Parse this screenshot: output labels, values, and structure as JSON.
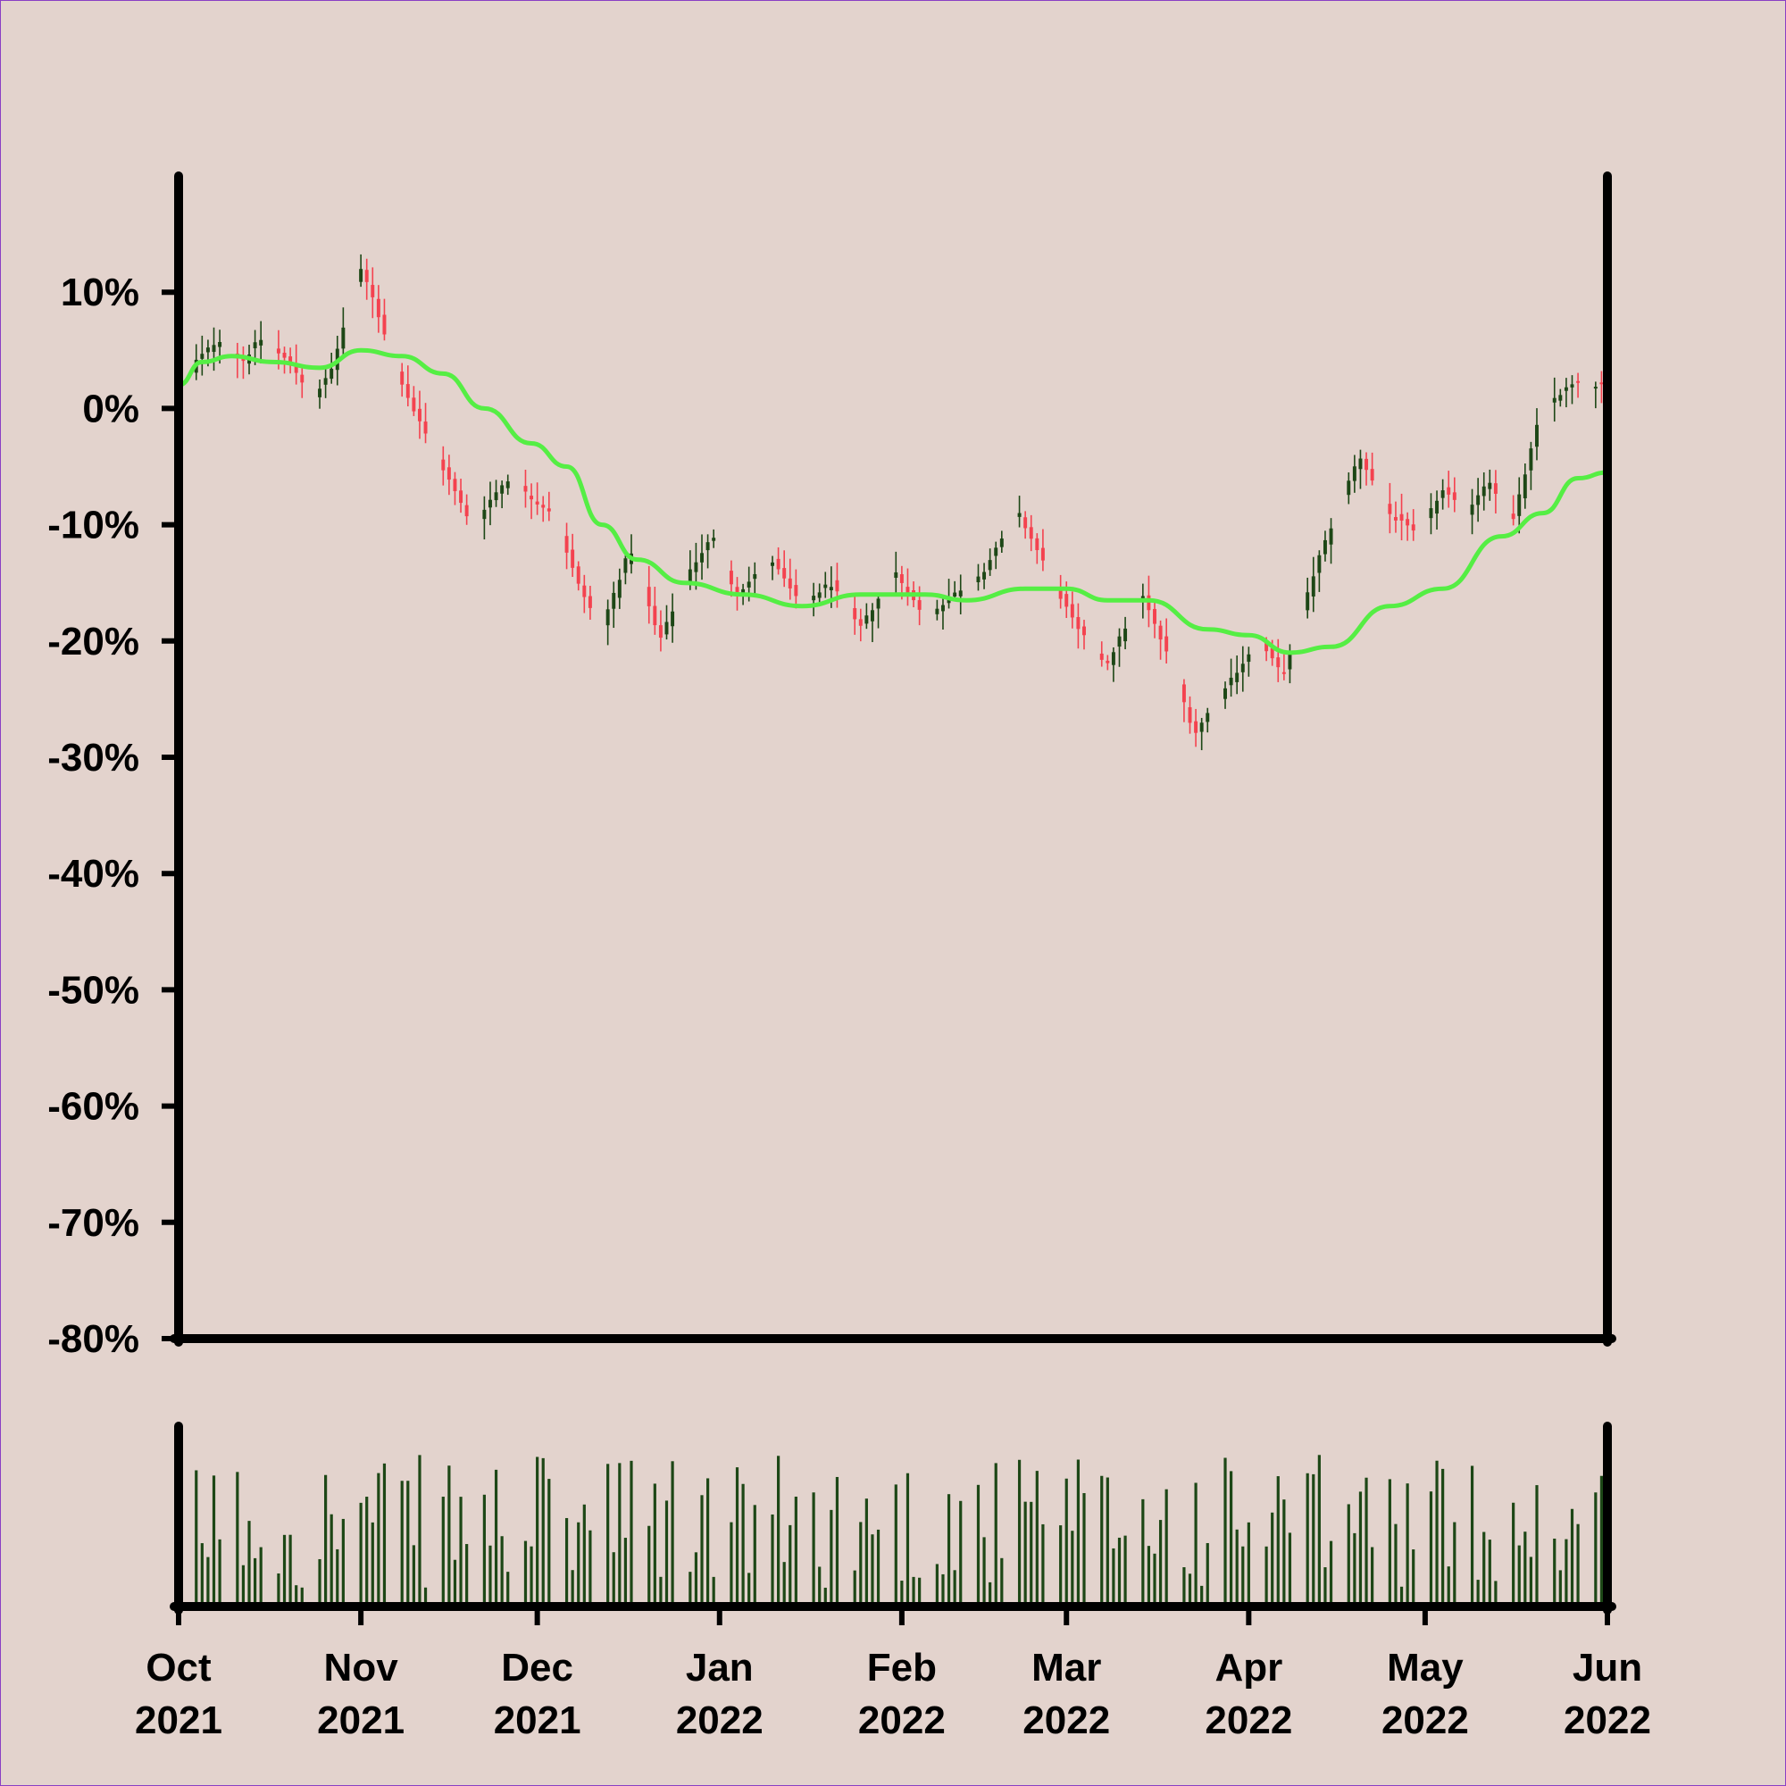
{
  "chart_data": {
    "type": "candlestick",
    "y_axis": {
      "ticks": [
        "10%",
        "0%",
        "-10%",
        "-20%",
        "-30%",
        "-40%",
        "-50%",
        "-60%",
        "-70%",
        "-80%"
      ],
      "tick_values": [
        10,
        0,
        -10,
        -20,
        -30,
        -40,
        -50,
        -60,
        -70,
        -80
      ],
      "range": [
        -80,
        20
      ]
    },
    "x_axis": {
      "range": [
        "2021-10-01",
        "2022-06-01"
      ],
      "ticks": [
        {
          "month": "Oct",
          "year": "2021",
          "date": "2021-10-01"
        },
        {
          "month": "Nov",
          "year": "2021",
          "date": "2021-11-01"
        },
        {
          "month": "Dec",
          "year": "2021",
          "date": "2021-12-01"
        },
        {
          "month": "Jan",
          "year": "2022",
          "date": "2022-01-01"
        },
        {
          "month": "Feb",
          "year": "2022",
          "date": "2022-02-01"
        },
        {
          "month": "Mar",
          "year": "2022",
          "date": "2022-03-01"
        },
        {
          "month": "Apr",
          "year": "2022",
          "date": "2022-04-01"
        },
        {
          "month": "May",
          "year": "2022",
          "date": "2022-05-01"
        },
        {
          "month": "Jun",
          "year": "2022",
          "date": "2022-06-01"
        }
      ]
    },
    "price_path": [
      [
        "2021-10-01",
        0
      ],
      [
        "2021-10-04",
        4
      ],
      [
        "2021-10-08",
        6
      ],
      [
        "2021-10-12",
        4
      ],
      [
        "2021-10-15",
        6
      ],
      [
        "2021-10-20",
        4
      ],
      [
        "2021-10-24",
        1
      ],
      [
        "2021-10-27",
        3
      ],
      [
        "2021-11-01",
        12
      ],
      [
        "2021-11-03",
        10
      ],
      [
        "2021-11-06",
        5
      ],
      [
        "2021-11-10",
        0
      ],
      [
        "2021-11-15",
        -5
      ],
      [
        "2021-11-20",
        -10
      ],
      [
        "2021-11-26",
        -6
      ],
      [
        "2021-12-01",
        -8
      ],
      [
        "2021-12-04",
        -9
      ],
      [
        "2021-12-08",
        -15
      ],
      [
        "2021-12-12",
        -19
      ],
      [
        "2021-12-17",
        -12
      ],
      [
        "2021-12-22",
        -20
      ],
      [
        "2021-12-27",
        -14
      ],
      [
        "2021-12-31",
        -11
      ],
      [
        "2022-01-04",
        -16
      ],
      [
        "2022-01-10",
        -13
      ],
      [
        "2022-01-15",
        -17
      ],
      [
        "2022-01-20",
        -15
      ],
      [
        "2022-01-25",
        -19
      ],
      [
        "2022-01-31",
        -14
      ],
      [
        "2022-02-05",
        -18
      ],
      [
        "2022-02-10",
        -16
      ],
      [
        "2022-02-15",
        -14
      ],
      [
        "2022-02-21",
        -9
      ],
      [
        "2022-02-27",
        -15
      ],
      [
        "2022-03-03",
        -19
      ],
      [
        "2022-03-08",
        -22
      ],
      [
        "2022-03-14",
        -16
      ],
      [
        "2022-03-19",
        -22
      ],
      [
        "2022-03-23",
        -28
      ],
      [
        "2022-03-28",
        -24
      ],
      [
        "2022-04-03",
        -20
      ],
      [
        "2022-04-07",
        -23
      ],
      [
        "2022-04-13",
        -13
      ],
      [
        "2022-04-20",
        -4
      ],
      [
        "2022-04-25",
        -9
      ],
      [
        "2022-04-30",
        -11
      ],
      [
        "2022-05-04",
        -7
      ],
      [
        "2022-05-08",
        -9
      ],
      [
        "2022-05-12",
        -6
      ],
      [
        "2022-05-16",
        -10
      ],
      [
        "2022-05-21",
        0
      ],
      [
        "2022-05-26",
        2
      ],
      [
        "2022-06-01",
        2
      ]
    ],
    "moving_average": [
      [
        "2021-10-01",
        2
      ],
      [
        "2021-10-05",
        4
      ],
      [
        "2021-10-10",
        4.5
      ],
      [
        "2021-10-17",
        4
      ],
      [
        "2021-10-25",
        3.5
      ],
      [
        "2021-11-01",
        5
      ],
      [
        "2021-11-08",
        4.5
      ],
      [
        "2021-11-15",
        3
      ],
      [
        "2021-11-22",
        0
      ],
      [
        "2021-11-30",
        -3
      ],
      [
        "2021-12-06",
        -5
      ],
      [
        "2021-12-12",
        -10
      ],
      [
        "2021-12-18",
        -13
      ],
      [
        "2021-12-26",
        -15
      ],
      [
        "2022-01-05",
        -16
      ],
      [
        "2022-01-15",
        -17
      ],
      [
        "2022-01-25",
        -16
      ],
      [
        "2022-02-05",
        -16
      ],
      [
        "2022-02-12",
        -16.5
      ],
      [
        "2022-02-22",
        -15.5
      ],
      [
        "2022-03-01",
        -15.5
      ],
      [
        "2022-03-08",
        -16.5
      ],
      [
        "2022-03-15",
        -16.5
      ],
      [
        "2022-03-25",
        -19
      ],
      [
        "2022-04-01",
        -19.5
      ],
      [
        "2022-04-08",
        -21
      ],
      [
        "2022-04-15",
        -20.5
      ],
      [
        "2022-04-25",
        -17
      ],
      [
        "2022-05-04",
        -15.5
      ],
      [
        "2022-05-14",
        -11
      ],
      [
        "2022-05-21",
        -9
      ],
      [
        "2022-05-27",
        -6
      ],
      [
        "2022-06-01",
        -5.5
      ]
    ],
    "volume": {
      "range": [
        0,
        100
      ],
      "shown": "unlabeled bars, one per trading day"
    },
    "colors": {
      "background": "#e3d3cd",
      "up_candle": "#1d4716",
      "down_candle": "#f4424f",
      "moving_average": "#55ee44",
      "volume_bar": "#1d4716",
      "axis": "#000000",
      "frame": "#8a3fc4"
    },
    "grid": false,
    "legend": false
  }
}
